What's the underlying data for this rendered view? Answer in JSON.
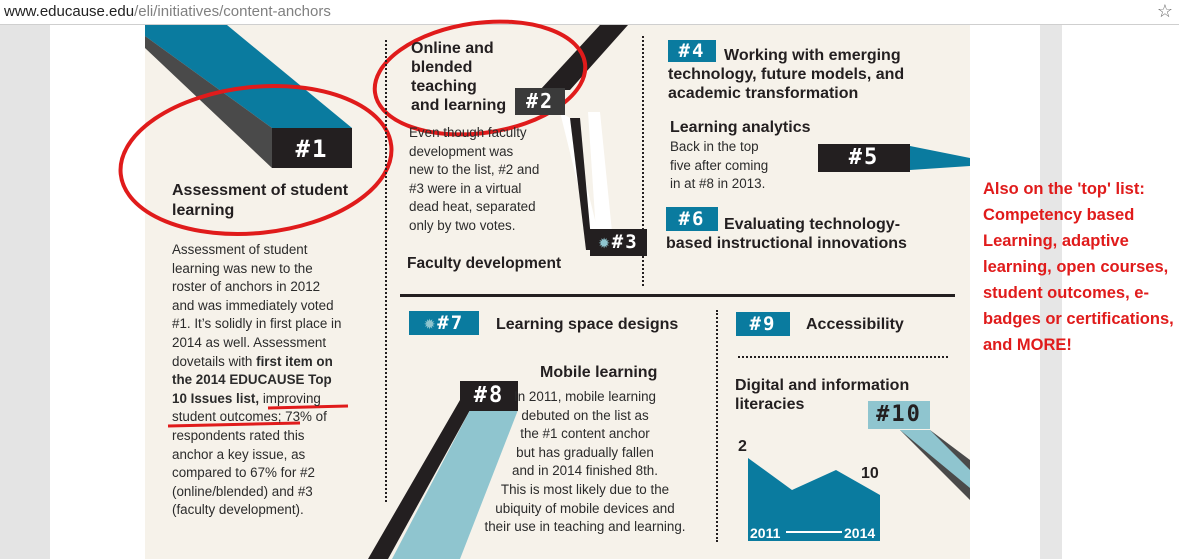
{
  "browser": {
    "url_domain": "www.educause.edu",
    "url_path": "/eli/initiatives/content-anchors",
    "bookmark_icon": "star-icon"
  },
  "anchors": {
    "a1": {
      "badge": "#1",
      "title_l1": "Assessment of student",
      "title_l2": "learning",
      "body": [
        "Assessment of student",
        "learning was new to the",
        "roster of anchors in 2012",
        "and was immediately voted",
        "#1. It’s solidly in first place in",
        "2014 as well. Assessment",
        "dovetails with"
      ],
      "bold_1": "first item on",
      "bold_2": "the 2014 EDUCAUSE Top",
      "bold_3": "10 Issues list,",
      "link_1": "improving",
      "link_2": "student outcomes;",
      "after_link": " 73% of",
      "body_end": [
        "respondents rated this",
        "anchor a key issue, as",
        "compared to 67% for #2",
        "(online/blended) and #3",
        "(faculty development)."
      ]
    },
    "a2": {
      "badge": "#2",
      "title": [
        "Online and",
        "blended",
        "teaching",
        "and learning"
      ],
      "body": [
        "Even though faculty",
        "development was",
        "new to the list, #2 and",
        "#3 were in a virtual",
        "dead heat, separated",
        "only by two votes."
      ]
    },
    "a3": {
      "badge": "#3",
      "title": "Faculty development"
    },
    "a4": {
      "badge": "#4",
      "title": [
        "Working with emerging",
        "technology, future models, and",
        "academic transformation"
      ]
    },
    "a5": {
      "badge": "#5",
      "title": "Learning analytics",
      "body": [
        "Back in the top",
        "five after coming",
        "in at #8 in 2013."
      ]
    },
    "a6": {
      "badge": "#6",
      "title": [
        "Evaluating technology-",
        "based instructional innovations"
      ]
    },
    "a7": {
      "badge": "#7",
      "title": "Learning space designs"
    },
    "a8": {
      "badge": "#8",
      "title": "Mobile learning",
      "body": [
        "In 2011, mobile learning",
        "debuted on the list as",
        "the #1 content anchor",
        "but has gradually fallen",
        "and in 2014 finished 8th.",
        "This is most likely due to the",
        "ubiquity of mobile devices and",
        "their use in teaching and learning."
      ]
    },
    "a9": {
      "badge": "#9",
      "title": "Accessibility"
    },
    "a10": {
      "badge": "#10",
      "title": [
        "Digital and information",
        "literacies"
      ]
    }
  },
  "chart_data": {
    "type": "area",
    "x": [
      "2011",
      "2014"
    ],
    "start_label": "2",
    "end_label": "10",
    "xlabel_start": "2011",
    "xlabel_end": "2014",
    "color": "#0a7b9f"
  },
  "annotation": {
    "text": "Also on the 'top' list: Competency based Learning, adaptive learning, open courses, student outcomes, e-badges or certifications, and MORE!",
    "color": "#e01b1b"
  },
  "colors": {
    "dark": "#231f20",
    "blue": "#0a7b9f",
    "light_blue": "#8fc5cf",
    "red": "#e01b1b",
    "poster_bg": "#f6f2ea"
  }
}
